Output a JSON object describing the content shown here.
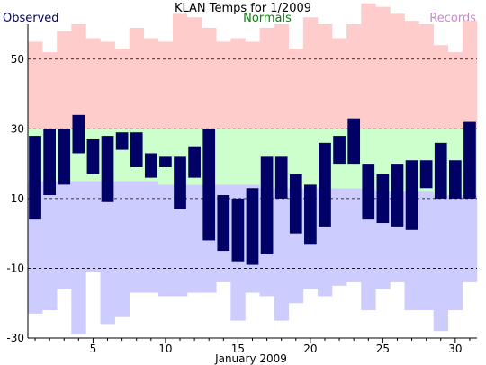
{
  "chart_data": {
    "type": "bar",
    "title": "KLAN Temps for 1/2009",
    "xlabel": "January 2009",
    "ylabel": "",
    "ylim": [
      -30,
      60
    ],
    "yticks": [
      -30,
      -10,
      10,
      30,
      50
    ],
    "xticks": [
      5,
      10,
      15,
      20,
      25,
      30
    ],
    "grid": "dashed horizontal at labeled ticks",
    "legend": {
      "placement": "top",
      "entries": [
        {
          "label": "Observed",
          "color": "#000066"
        },
        {
          "label": "Normals",
          "color": "#008800"
        },
        {
          "label": "Records",
          "color": "#cc88cc"
        }
      ]
    },
    "days": [
      1,
      2,
      3,
      4,
      5,
      6,
      7,
      8,
      9,
      10,
      11,
      12,
      13,
      14,
      15,
      16,
      17,
      18,
      19,
      20,
      21,
      22,
      23,
      24,
      25,
      26,
      27,
      28,
      29,
      30,
      31
    ],
    "series": [
      {
        "name": "Records",
        "role": "range band (record low to record high)",
        "color": "#ffcccc",
        "low_color": "#ccccff",
        "high": [
          55,
          52,
          58,
          60,
          56,
          55,
          53,
          59,
          56,
          55,
          63,
          62,
          59,
          55,
          56,
          55,
          59,
          60,
          53,
          62,
          60,
          56,
          60,
          66,
          65,
          63,
          61,
          60,
          54,
          52,
          61
        ],
        "low": [
          -23,
          -22,
          -16,
          -29,
          -11,
          -26,
          -24,
          -17,
          -17,
          -18,
          -18,
          -17,
          -17,
          -14,
          -25,
          -17,
          -18,
          -25,
          -20,
          -16,
          -18,
          -15,
          -14,
          -22,
          -16,
          -14,
          -22,
          -22,
          -28,
          -22,
          -14
        ]
      },
      {
        "name": "Normals",
        "role": "range band (normal low to normal high)",
        "color": "#ccffcc",
        "high": [
          30,
          30,
          30,
          30,
          30,
          30,
          30,
          30,
          30,
          30,
          30,
          30,
          30,
          30,
          30,
          30,
          30,
          30,
          30,
          30,
          30,
          30,
          30,
          30,
          30,
          30,
          30,
          30,
          30,
          30,
          30
        ],
        "low": [
          15,
          15,
          15,
          15,
          15,
          15,
          15,
          15,
          15,
          14,
          14,
          14,
          14,
          14,
          14,
          14,
          13,
          13,
          13,
          13,
          13,
          13,
          13,
          13,
          12,
          12,
          12,
          12,
          11,
          11,
          11
        ]
      },
      {
        "name": "Observed",
        "role": "floating bars (daily low to daily high)",
        "color": "#000066",
        "high": [
          28,
          30,
          30,
          34,
          27,
          28,
          29,
          29,
          23,
          22,
          22,
          25,
          30,
          11,
          10,
          13,
          22,
          22,
          17,
          14,
          26,
          28,
          33,
          20,
          17,
          20,
          21,
          21,
          26,
          21,
          32
        ],
        "low": [
          4,
          11,
          14,
          23,
          17,
          9,
          24,
          19,
          16,
          19,
          7,
          16,
          -2,
          -5,
          -8,
          -9,
          -6,
          10,
          0,
          -3,
          2,
          20,
          20,
          4,
          3,
          2,
          1,
          13,
          10,
          10,
          10
        ]
      }
    ]
  }
}
